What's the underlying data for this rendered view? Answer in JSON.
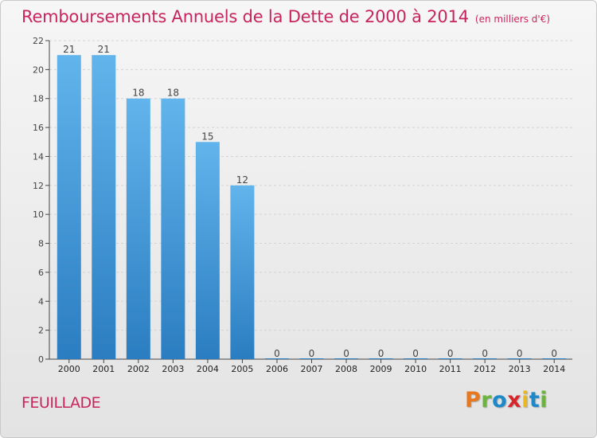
{
  "header": {
    "title": "Remboursements Annuels de la Dette de 2000 à 2014",
    "unit": "(en milliers d'€)"
  },
  "footer": {
    "commune": "FEUILLADE",
    "brand": "Proxiti",
    "brand_colors": [
      "#e8781e",
      "#6cb33f",
      "#1e88c8",
      "#d6262b",
      "#e8b81e",
      "#1e88c8",
      "#6cb33f"
    ]
  },
  "colors": {
    "bar_light": "#62b4ec",
    "bar_dark": "#2a7dc0",
    "title": "#c8255e",
    "axis": "#444444",
    "grid": "#d4d4d4"
  },
  "chart_data": {
    "type": "bar",
    "categories": [
      "2000",
      "2001",
      "2002",
      "2003",
      "2004",
      "2005",
      "2006",
      "2007",
      "2008",
      "2009",
      "2010",
      "2011",
      "2012",
      "2013",
      "2014"
    ],
    "values": [
      21,
      21,
      18,
      18,
      15,
      12,
      0,
      0,
      0,
      0,
      0,
      0,
      0,
      0,
      0
    ],
    "value_labels": [
      "21",
      "21",
      "18",
      "18",
      "15",
      "12",
      "0",
      "0",
      "0",
      "0",
      "0",
      "0",
      "0",
      "0",
      "0"
    ],
    "title": "Remboursements Annuels de la Dette de 2000 à 2014",
    "subtitle": "(en milliers d'€)",
    "xlabel": "",
    "ylabel": "",
    "ylim": [
      0,
      22
    ],
    "yticks": [
      0,
      2,
      4,
      6,
      8,
      10,
      12,
      14,
      16,
      18,
      20,
      22
    ],
    "grid": "horizontal dashed",
    "legend": "none"
  }
}
